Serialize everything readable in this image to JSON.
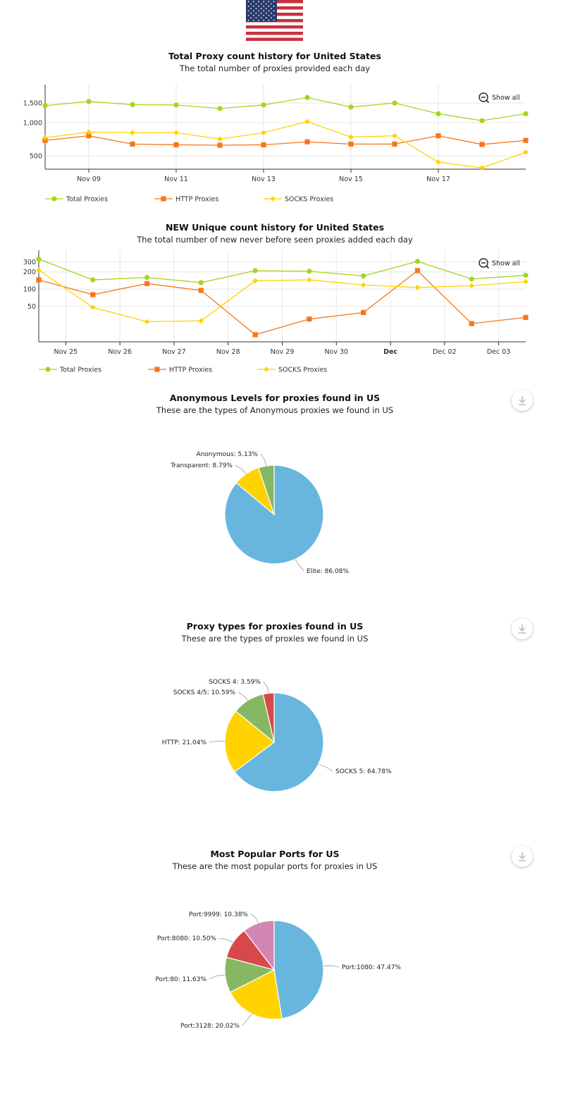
{
  "chart_data": [
    {
      "type": "line",
      "title": "Total Proxy count history for United States",
      "subtitle": "The total number of proxies provided each day",
      "reset_label": "Show all",
      "y_scale": "log",
      "y_ticks": [
        "500",
        "1,000",
        "1,500"
      ],
      "y_tick_values": [
        500,
        1000,
        1500
      ],
      "x_tick_labels": [
        "Nov 09",
        "Nov 11",
        "Nov 13",
        "Nov 15",
        "Nov 17"
      ],
      "x_tick_positions": [
        1,
        3,
        5,
        7,
        9
      ],
      "x_count": 12,
      "series": [
        {
          "name": "Total Proxies",
          "color": "#a4d61b",
          "marker": "circle",
          "values": [
            1420,
            1550,
            1450,
            1440,
            1340,
            1440,
            1680,
            1380,
            1500,
            1200,
            1040,
            1200
          ]
        },
        {
          "name": "HTTP Proxies",
          "color": "#f7761a",
          "marker": "square",
          "values": [
            690,
            760,
            640,
            630,
            625,
            630,
            670,
            640,
            640,
            760,
            635,
            690
          ]
        },
        {
          "name": "SOCKS Proxies",
          "color": "#ffd200",
          "marker": "diamond",
          "values": [
            730,
            820,
            810,
            810,
            710,
            810,
            1020,
            740,
            760,
            440,
            390,
            540
          ]
        }
      ],
      "legend_position": "bottom-left"
    },
    {
      "type": "line",
      "title": "NEW Unique count history for United States",
      "subtitle": "The total number of new never before seen proxies added each day",
      "reset_label": "Show all",
      "y_scale": "log",
      "y_ticks": [
        "50",
        "100",
        "200",
        "300"
      ],
      "y_tick_values": [
        50,
        100,
        200,
        300
      ],
      "x_tick_labels": [
        "Nov 25",
        "Nov 26",
        "Nov 27",
        "Nov 28",
        "Nov 29",
        "Nov 30",
        "Dec",
        "Dec 02",
        "Dec 03"
      ],
      "x_tick_positions": [
        0.5,
        1.5,
        2.5,
        3.5,
        4.5,
        5.5,
        6.5,
        7.5,
        8.5
      ],
      "x_count": 10,
      "series": [
        {
          "name": "Total Proxies",
          "color": "#a4d61b",
          "marker": "circle",
          "values": [
            335,
            145,
            160,
            130,
            210,
            205,
            170,
            305,
            150,
            175
          ]
        },
        {
          "name": "HTTP Proxies",
          "color": "#f7761a",
          "marker": "square",
          "values": [
            145,
            80,
            125,
            95,
            16,
            30,
            39,
            210,
            25,
            32
          ]
        },
        {
          "name": "SOCKS Proxies",
          "color": "#ffd200",
          "marker": "diamond",
          "values": [
            215,
            48,
            27,
            28,
            140,
            145,
            118,
            107,
            115,
            135
          ]
        }
      ],
      "legend_position": "bottom-left"
    },
    {
      "type": "pie",
      "title": "Anonymous Levels for proxies found in US",
      "subtitle": "These are the types of Anonymous proxies we found in US",
      "slices": [
        {
          "label": "Elite: 86.08%",
          "value": 86.08,
          "color": "#68b6de"
        },
        {
          "label": "Transparent: 8.79%",
          "value": 8.79,
          "color": "#ffd200"
        },
        {
          "label": "Anonymous: 5.13%",
          "value": 5.13,
          "color": "#86b863"
        }
      ]
    },
    {
      "type": "pie",
      "title": "Proxy types for proxies found in US",
      "subtitle": "These are the types of proxies we found in US",
      "slices": [
        {
          "label": "SOCKS 5: 64.78%",
          "value": 64.78,
          "color": "#68b6de"
        },
        {
          "label": "HTTP: 21.04%",
          "value": 21.04,
          "color": "#ffd200"
        },
        {
          "label": "SOCKS 4/5: 10.59%",
          "value": 10.59,
          "color": "#86b863"
        },
        {
          "label": "SOCKS 4: 3.59%",
          "value": 3.59,
          "color": "#d6494a"
        }
      ]
    },
    {
      "type": "pie",
      "title": "Most Popular Ports for US",
      "subtitle": "These are the most popular ports for proxies in US",
      "slices": [
        {
          "label": "Port:1080: 47.47%",
          "value": 47.47,
          "color": "#68b6de"
        },
        {
          "label": "Port:3128: 20.02%",
          "value": 20.02,
          "color": "#ffd200"
        },
        {
          "label": "Port:80: 11.63%",
          "value": 11.63,
          "color": "#86b863"
        },
        {
          "label": "Port:8080: 10.50%",
          "value": 10.5,
          "color": "#d6494a"
        },
        {
          "label": "Port:9999: 10.38%",
          "value": 10.38,
          "color": "#d286b3"
        }
      ]
    }
  ]
}
